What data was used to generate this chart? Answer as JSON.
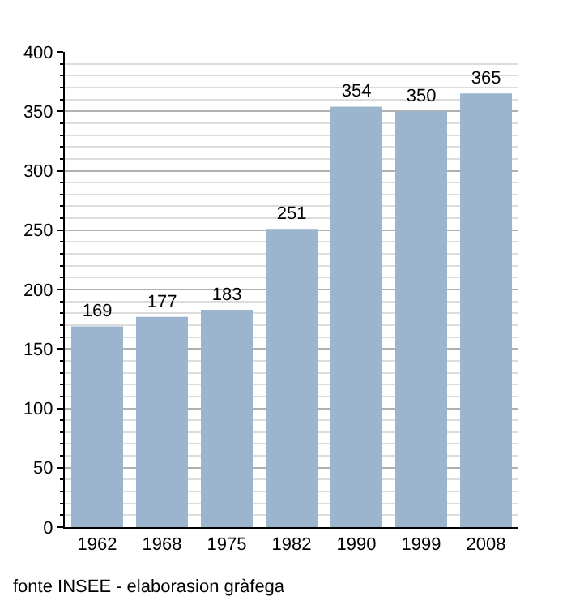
{
  "chart_data": {
    "type": "bar",
    "categories": [
      "1962",
      "1968",
      "1975",
      "1982",
      "1990",
      "1999",
      "2008"
    ],
    "values": [
      169,
      177,
      183,
      251,
      354,
      350,
      365
    ],
    "color": "#9bb5cf",
    "ylim": [
      0,
      400
    ],
    "yticks": [
      0,
      50,
      100,
      150,
      200,
      250,
      300,
      350,
      400
    ],
    "grid": "y",
    "data_labels": true,
    "annotations": [
      "fonte INSEE - elaborasion gràfega"
    ]
  }
}
